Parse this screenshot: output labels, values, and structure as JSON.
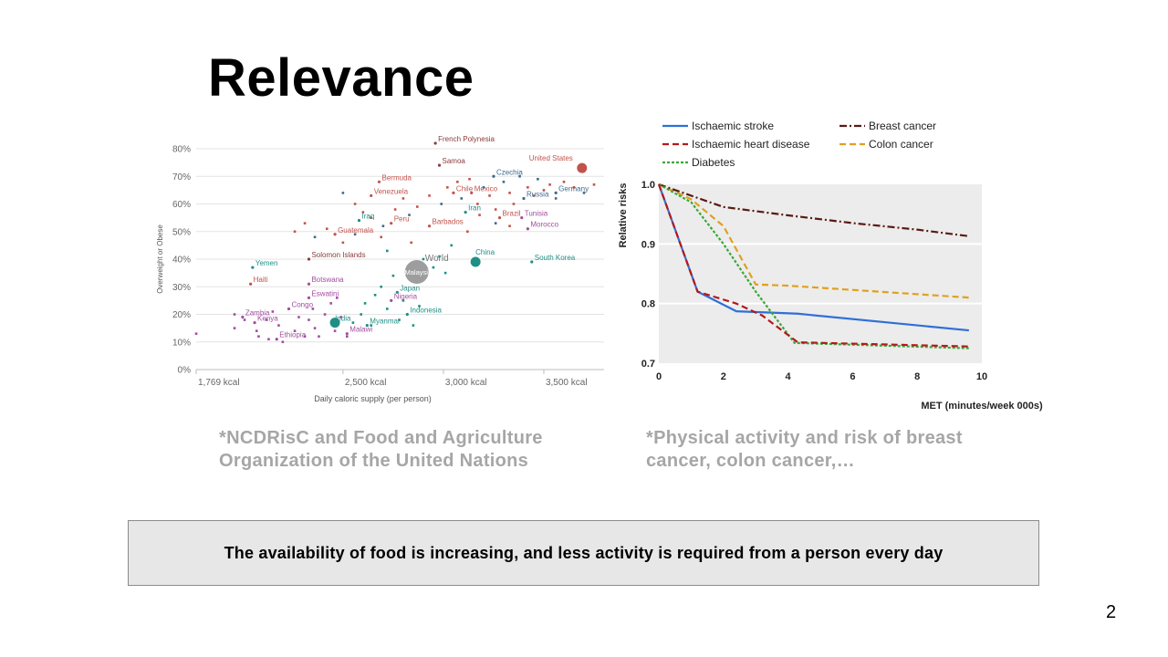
{
  "slide": {
    "title": "Relevance",
    "caption_left_line1": "*NCDRisC and Food and Agriculture",
    "caption_left_line2": "Organization of the United Nations",
    "caption_right_line1": "*Physical activity and risk of breast",
    "caption_right_line2": "cancer, colon cancer,…",
    "note": "The availability of food is increasing, and less activity is required from a person every day",
    "page_number": "2"
  },
  "chart_data": [
    {
      "type": "scatter",
      "xlabel": "Daily caloric supply (per person)",
      "ylabel": "Overweight or Obese",
      "xlim": [
        1769,
        3800
      ],
      "ylim": [
        0,
        80
      ],
      "x_ticks": [
        {
          "value": 1769,
          "label": "1,769 kcal"
        },
        {
          "value": 2500,
          "label": "2,500 kcal"
        },
        {
          "value": 3000,
          "label": "3,000 kcal"
        },
        {
          "value": 3500,
          "label": "3,500 kcal"
        }
      ],
      "y_ticks": [
        {
          "value": 0,
          "label": "0%"
        },
        {
          "value": 10,
          "label": "10%"
        },
        {
          "value": 20,
          "label": "20%"
        },
        {
          "value": 30,
          "label": "30%"
        },
        {
          "value": 40,
          "label": "40%"
        },
        {
          "value": 50,
          "label": "50%"
        },
        {
          "value": 60,
          "label": "60%"
        },
        {
          "value": 70,
          "label": "70%"
        },
        {
          "value": 80,
          "label": "80%"
        }
      ],
      "grid": "horizontal",
      "colors": {
        "africa": "#a24d9f",
        "americas": "#c0544c",
        "asia": "#1f8f86",
        "europe": "#3d6b8e",
        "oceania": "#8a3b3b",
        "world": "#8c8c8c"
      },
      "labeled_points": [
        {
          "label": "French Polynesia",
          "x": 2960,
          "y": 82,
          "region": "oceania"
        },
        {
          "label": "Samoa",
          "x": 2980,
          "y": 74,
          "region": "oceania"
        },
        {
          "label": "United States",
          "x": 3690,
          "y": 73,
          "region": "americas",
          "big": true
        },
        {
          "label": "Czechia",
          "x": 3250,
          "y": 70,
          "region": "europe"
        },
        {
          "label": "Bermuda",
          "x": 2680,
          "y": 68,
          "region": "americas"
        },
        {
          "label": "Chile",
          "x": 3050,
          "y": 64,
          "region": "americas"
        },
        {
          "label": "Mexico",
          "x": 3140,
          "y": 64,
          "region": "americas"
        },
        {
          "label": "Germany",
          "x": 3560,
          "y": 64,
          "region": "europe"
        },
        {
          "label": "Venezuela",
          "x": 2640,
          "y": 63,
          "region": "americas"
        },
        {
          "label": "Russia",
          "x": 3400,
          "y": 62,
          "region": "europe"
        },
        {
          "label": "Iran",
          "x": 3110,
          "y": 57,
          "region": "asia"
        },
        {
          "label": "Brazil",
          "x": 3280,
          "y": 55,
          "region": "americas"
        },
        {
          "label": "Tunisia",
          "x": 3390,
          "y": 55,
          "region": "africa"
        },
        {
          "label": "Iraq",
          "x": 2580,
          "y": 54,
          "region": "asia"
        },
        {
          "label": "Peru",
          "x": 2740,
          "y": 53,
          "region": "americas"
        },
        {
          "label": "Barbados",
          "x": 2930,
          "y": 52,
          "region": "americas"
        },
        {
          "label": "Morocco",
          "x": 3420,
          "y": 51,
          "region": "africa"
        },
        {
          "label": "Guatemala",
          "x": 2460,
          "y": 49,
          "region": "americas"
        },
        {
          "label": "World",
          "x": 2890,
          "y": 38,
          "region": "world",
          "big": true
        },
        {
          "label": "Malaysia",
          "x": 2880,
          "y": 37,
          "region": "asia"
        },
        {
          "label": "China",
          "x": 3160,
          "y": 39,
          "region": "asia",
          "big": true
        },
        {
          "label": "South Korea",
          "x": 3440,
          "y": 39,
          "region": "asia"
        },
        {
          "label": "Solomon Islands",
          "x": 2330,
          "y": 40,
          "region": "oceania"
        },
        {
          "label": "Yemen",
          "x": 2050,
          "y": 37,
          "region": "asia"
        },
        {
          "label": "Botswana",
          "x": 2330,
          "y": 31,
          "region": "africa"
        },
        {
          "label": "Haiti",
          "x": 2040,
          "y": 31,
          "region": "americas"
        },
        {
          "label": "Japan",
          "x": 2770,
          "y": 28,
          "region": "asia"
        },
        {
          "label": "Eswatini",
          "x": 2330,
          "y": 26,
          "region": "africa"
        },
        {
          "label": "Nigeria",
          "x": 2740,
          "y": 25,
          "region": "africa"
        },
        {
          "label": "Congo",
          "x": 2230,
          "y": 22,
          "region": "africa"
        },
        {
          "label": "Indonesia",
          "x": 2820,
          "y": 20,
          "region": "asia"
        },
        {
          "label": "Zambia",
          "x": 2000,
          "y": 19,
          "region": "africa"
        },
        {
          "label": "India",
          "x": 2460,
          "y": 17,
          "region": "asia",
          "big": true
        },
        {
          "label": "Kenya",
          "x": 2060,
          "y": 17,
          "region": "africa"
        },
        {
          "label": "Myanmar",
          "x": 2620,
          "y": 16,
          "region": "asia"
        },
        {
          "label": "Malawi",
          "x": 2520,
          "y": 13,
          "region": "africa"
        },
        {
          "label": "Ethiopia",
          "x": 2170,
          "y": 11,
          "region": "africa"
        }
      ],
      "other_points": [
        [
          1769,
          13
        ],
        [
          1960,
          15
        ],
        [
          1960,
          20
        ],
        [
          2010,
          18
        ],
        [
          2070,
          14
        ],
        [
          2080,
          12
        ],
        [
          2120,
          18
        ],
        [
          2130,
          11
        ],
        [
          2150,
          21
        ],
        [
          2180,
          16
        ],
        [
          2200,
          10
        ],
        [
          2260,
          14
        ],
        [
          2280,
          19
        ],
        [
          2310,
          12
        ],
        [
          2330,
          18
        ],
        [
          2350,
          22
        ],
        [
          2360,
          15
        ],
        [
          2380,
          12
        ],
        [
          2410,
          20
        ],
        [
          2440,
          24
        ],
        [
          2460,
          14
        ],
        [
          2470,
          26
        ],
        [
          2490,
          19
        ],
        [
          2520,
          12
        ],
        [
          2550,
          17
        ],
        [
          2590,
          20
        ],
        [
          2610,
          24
        ],
        [
          2640,
          16
        ],
        [
          2660,
          27
        ],
        [
          2690,
          30
        ],
        [
          2720,
          22
        ],
        [
          2750,
          34
        ],
        [
          2780,
          18
        ],
        [
          2800,
          25
        ],
        [
          2850,
          16
        ],
        [
          2880,
          23
        ],
        [
          2950,
          37
        ],
        [
          2980,
          41
        ],
        [
          3010,
          35
        ],
        [
          3040,
          45
        ],
        [
          2260,
          50
        ],
        [
          2310,
          53
        ],
        [
          2360,
          48
        ],
        [
          2420,
          51
        ],
        [
          2500,
          46
        ],
        [
          2560,
          49
        ],
        [
          2600,
          57
        ],
        [
          2640,
          55
        ],
        [
          2700,
          52
        ],
        [
          2760,
          58
        ],
        [
          2800,
          62
        ],
        [
          2830,
          56
        ],
        [
          2870,
          59
        ],
        [
          2930,
          63
        ],
        [
          2990,
          60
        ],
        [
          3020,
          66
        ],
        [
          3070,
          68
        ],
        [
          3090,
          62
        ],
        [
          3130,
          69
        ],
        [
          3170,
          60
        ],
        [
          3200,
          66
        ],
        [
          3230,
          63
        ],
        [
          3260,
          58
        ],
        [
          3300,
          68
        ],
        [
          3330,
          64
        ],
        [
          3350,
          60
        ],
        [
          3380,
          70
        ],
        [
          3420,
          66
        ],
        [
          3450,
          63
        ],
        [
          3470,
          69
        ],
        [
          3500,
          65
        ],
        [
          3530,
          67
        ],
        [
          3560,
          62
        ],
        [
          3600,
          68
        ],
        [
          3650,
          66
        ],
        [
          3700,
          64
        ],
        [
          3750,
          67
        ],
        [
          3330,
          52
        ],
        [
          3260,
          53
        ],
        [
          3180,
          56
        ],
        [
          3120,
          50
        ],
        [
          2500,
          64
        ],
        [
          2560,
          60
        ],
        [
          2690,
          48
        ],
        [
          2720,
          43
        ],
        [
          2840,
          46
        ],
        [
          2900,
          40
        ]
      ]
    },
    {
      "type": "line",
      "xlabel": "MET (minutes/week 000s)",
      "ylabel": "Relative risks",
      "xlim": [
        0,
        10
      ],
      "ylim": [
        0.7,
        1.0
      ],
      "x_ticks": [
        0,
        2,
        4,
        6,
        8,
        10
      ],
      "y_ticks": [
        {
          "value": 0.7,
          "label": "0.7"
        },
        {
          "value": 0.8,
          "label": "0.8"
        },
        {
          "value": 0.9,
          "label": "0.9"
        },
        {
          "value": 1.0,
          "label": "1.0"
        }
      ],
      "grid": "horizontal",
      "legend": "top",
      "series": [
        {
          "name": "Ischaemic stroke",
          "color": "#2f6fd8",
          "dash": "solid",
          "x": [
            0,
            1.2,
            2.4,
            4.3,
            9.6
          ],
          "y": [
            1.0,
            0.82,
            0.787,
            0.783,
            0.755
          ]
        },
        {
          "name": "Breast cancer",
          "color": "#5a1a14",
          "dash": "dashdot",
          "x": [
            0,
            2,
            4,
            6,
            8,
            9.6
          ],
          "y": [
            1.0,
            0.962,
            0.948,
            0.935,
            0.924,
            0.913
          ]
        },
        {
          "name": "Ischaemic heart disease",
          "color": "#b31a1a",
          "dash": "dash",
          "x": [
            0,
            1.2,
            2.4,
            3.2,
            4.3,
            9.6
          ],
          "y": [
            1.0,
            0.82,
            0.8,
            0.78,
            0.735,
            0.728
          ]
        },
        {
          "name": "Colon cancer",
          "color": "#e0a020",
          "dash": "dash",
          "x": [
            0,
            1.0,
            2.0,
            3.0,
            4.0,
            9.6
          ],
          "y": [
            1.0,
            0.975,
            0.93,
            0.832,
            0.83,
            0.81
          ]
        },
        {
          "name": "Diabetes",
          "color": "#3aa83a",
          "dash": "dot",
          "x": [
            0,
            1.0,
            2.0,
            3.0,
            4.2,
            9.6
          ],
          "y": [
            1.0,
            0.97,
            0.9,
            0.82,
            0.734,
            0.725
          ]
        }
      ]
    }
  ]
}
